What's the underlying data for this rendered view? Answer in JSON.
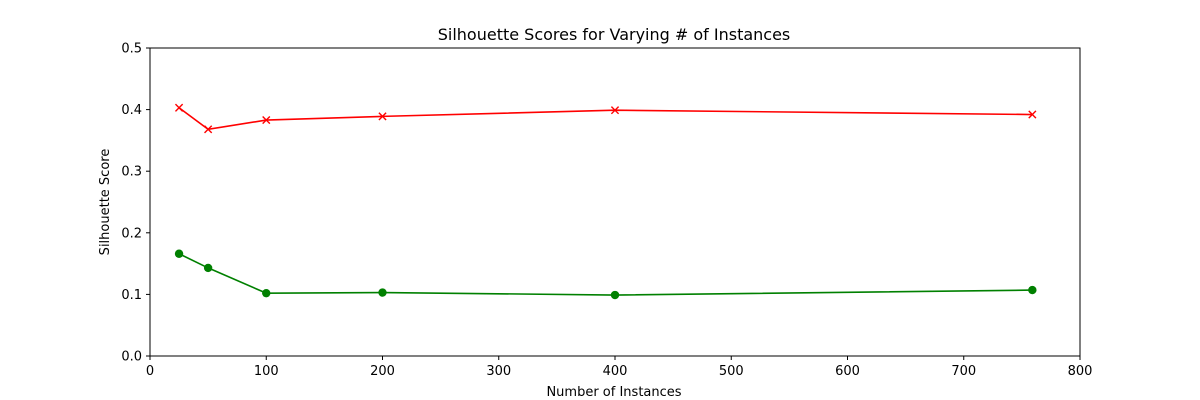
{
  "chart_data": {
    "type": "line",
    "title": "Silhouette Scores for Varying # of Instances",
    "xlabel": "Number of Instances",
    "ylabel": "Silhouette Score",
    "xlim": [
      0,
      800
    ],
    "ylim": [
      0,
      0.5
    ],
    "xticks": [
      0,
      100,
      200,
      300,
      400,
      500,
      600,
      700,
      800
    ],
    "xtick_labels": [
      "0",
      "100",
      "200",
      "300",
      "400",
      "500",
      "600",
      "700",
      "800"
    ],
    "yticks": [
      0.0,
      0.1,
      0.2,
      0.3,
      0.4,
      0.5
    ],
    "ytick_labels": [
      "0.0",
      "0.1",
      "0.2",
      "0.3",
      "0.4",
      "0.5"
    ],
    "grid": false,
    "series": [
      {
        "color": "#ff0000",
        "marker": "x",
        "x": [
          25,
          50,
          100,
          200,
          400,
          759
        ],
        "values": [
          0.403,
          0.368,
          0.383,
          0.389,
          0.399,
          0.392
        ]
      },
      {
        "color": "#008000",
        "marker": "circle",
        "x": [
          25,
          50,
          100,
          200,
          400,
          759
        ],
        "values": [
          0.166,
          0.143,
          0.102,
          0.103,
          0.099,
          0.107
        ]
      }
    ]
  }
}
